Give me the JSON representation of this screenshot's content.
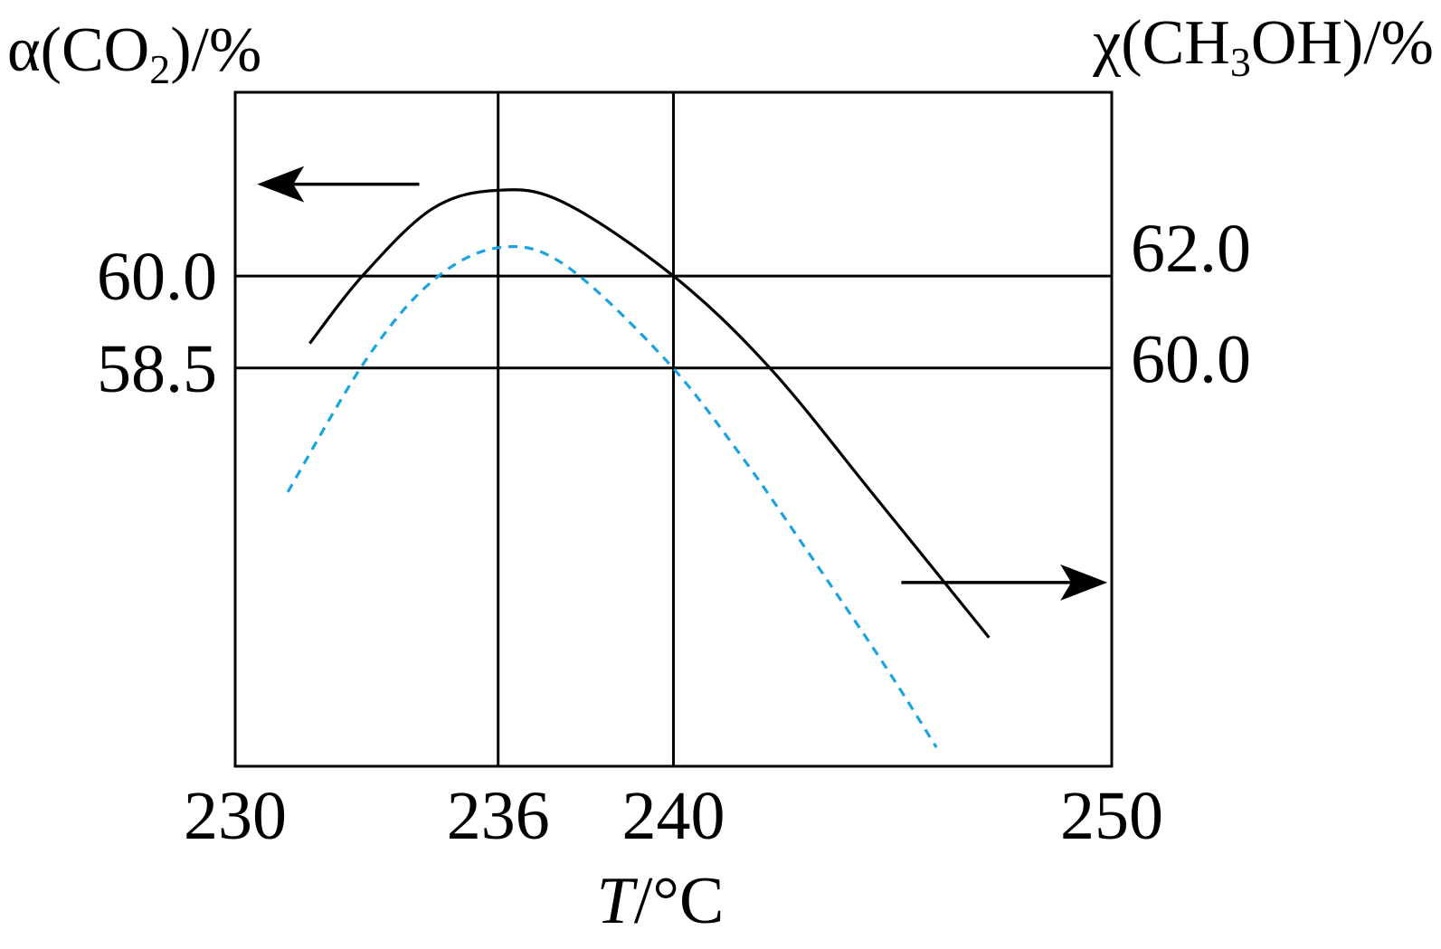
{
  "chart_data": {
    "type": "line",
    "xlabel_italic": "T",
    "xlabel_rest": "/°C",
    "ylabel_left": {
      "pre": "α(CO",
      "sub": "2",
      "post": ")/%"
    },
    "ylabel_right": {
      "pre": "χ(CH",
      "sub": "3",
      "post": "OH)/%"
    },
    "x_ticks": [
      "230",
      "236",
      "240",
      "250"
    ],
    "x_tick_values": [
      230,
      236,
      240,
      250
    ],
    "xlim": [
      230,
      250
    ],
    "left_ticks": [
      "60.0",
      "58.5"
    ],
    "left_tick_values": [
      60.0,
      58.5
    ],
    "right_ticks": [
      "62.0",
      "60.0"
    ],
    "right_tick_values": [
      62.0,
      60.0
    ],
    "left_ylim": [
      52.0,
      63.0
    ],
    "right_ylim": [
      52.66,
      64.8
    ],
    "grid_vertical": [
      236,
      240
    ],
    "grid_horizontal_left": [
      60.0,
      58.5
    ],
    "series": [
      {
        "axis": "left",
        "style": "solid",
        "color": "#000000",
        "points": [
          [
            231.7,
            58.9
          ],
          [
            232.9,
            60.0
          ],
          [
            234.5,
            61.1
          ],
          [
            236.0,
            61.4
          ],
          [
            237.5,
            61.2
          ],
          [
            240.0,
            60.0
          ],
          [
            242.2,
            58.5
          ],
          [
            244.6,
            56.4
          ],
          [
            247.2,
            54.1
          ]
        ]
      },
      {
        "axis": "right",
        "style": "dashed",
        "color": "#1ba3e0",
        "points": [
          [
            231.2,
            57.6
          ],
          [
            233.0,
            60.0
          ],
          [
            234.5,
            61.4
          ],
          [
            236.0,
            62.0
          ],
          [
            237.5,
            61.7
          ],
          [
            239.8,
            60.0
          ],
          [
            241.5,
            58.3
          ],
          [
            243.0,
            56.6
          ],
          [
            244.8,
            54.5
          ],
          [
            246.0,
            53.0
          ]
        ]
      }
    ],
    "annotations": [
      {
        "type": "arrow",
        "direction": "left",
        "points_to": "left-axis",
        "x_from": 234.2,
        "x_to": 230.5,
        "y_left": 61.5
      },
      {
        "type": "arrow",
        "direction": "right",
        "points_to": "right-axis",
        "x_from": 245.2,
        "x_to": 249.9,
        "y_left": 55.0
      }
    ]
  }
}
